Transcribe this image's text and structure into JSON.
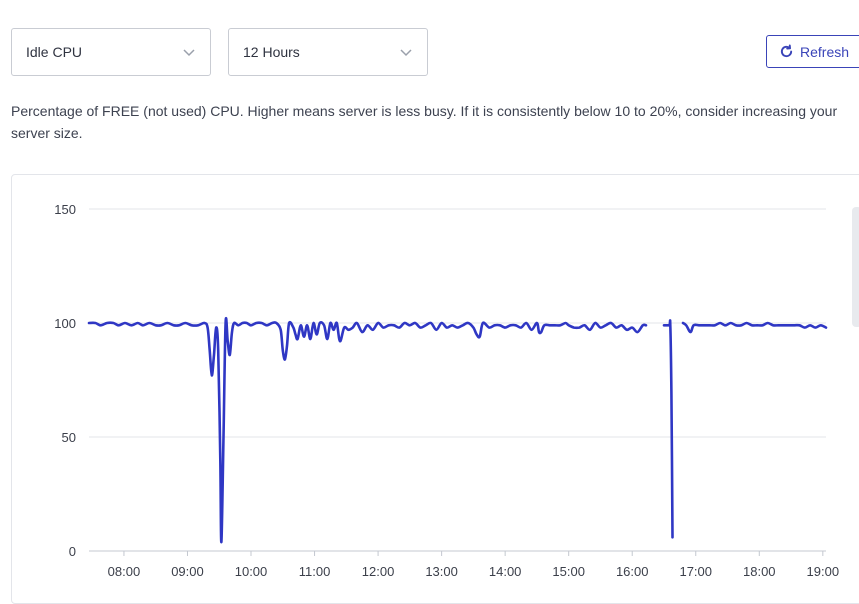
{
  "controls": {
    "metric_select": "Idle CPU",
    "range_select": "12 Hours",
    "refresh_label": "Refresh"
  },
  "description": "Percentage of FREE (not used) CPU. Higher means server is less busy. If it is consistently below 10 to 20%, consider increasing your server size.",
  "colors": {
    "line": "#2f37c4",
    "grid": "#e3e5ea",
    "accent": "#3a44b8"
  },
  "chart_data": {
    "type": "line",
    "title": "",
    "xlabel": "",
    "ylabel": "",
    "ylim": [
      0,
      150
    ],
    "yticks": [
      0,
      50,
      100,
      150
    ],
    "xticks": [
      "08:00",
      "09:00",
      "10:00",
      "11:00",
      "12:00",
      "13:00",
      "14:00",
      "15:00",
      "16:00",
      "17:00",
      "18:00",
      "19:00"
    ],
    "grid": true,
    "series": [
      {
        "segments": [
          [
            [
              "07:27",
              100
            ],
            [
              "07:33",
              100
            ],
            [
              "07:38",
              99
            ],
            [
              "07:44",
              100
            ],
            [
              "07:50",
              100
            ],
            [
              "07:55",
              99
            ],
            [
              "08:01",
              100
            ],
            [
              "08:07",
              99
            ],
            [
              "08:13",
              100
            ],
            [
              "08:18",
              99
            ],
            [
              "08:24",
              100
            ],
            [
              "08:30",
              99
            ],
            [
              "08:35",
              99
            ],
            [
              "08:41",
              100
            ],
            [
              "08:47",
              99
            ],
            [
              "08:52",
              99
            ],
            [
              "08:58",
              100
            ],
            [
              "09:04",
              99
            ],
            [
              "09:10",
              99
            ],
            [
              "09:16",
              100
            ],
            [
              "09:19",
              98
            ],
            [
              "09:21",
              88
            ],
            [
              "09:23",
              77
            ],
            [
              "09:25",
              86
            ],
            [
              "09:27",
              98
            ],
            [
              "09:29",
              88
            ],
            [
              "09:31",
              40
            ],
            [
              "09:32",
              4
            ],
            [
              "09:34",
              50
            ],
            [
              "09:36",
              100
            ],
            [
              "09:38",
              92
            ],
            [
              "09:40",
              86
            ],
            [
              "09:42",
              96
            ],
            [
              "09:44",
              100
            ],
            [
              "09:48",
              99
            ],
            [
              "09:52",
              100
            ],
            [
              "09:56",
              100
            ],
            [
              "10:00",
              99
            ],
            [
              "10:05",
              100
            ],
            [
              "10:10",
              100
            ],
            [
              "10:15",
              99
            ],
            [
              "10:20",
              100
            ],
            [
              "10:24",
              100
            ],
            [
              "10:28",
              97
            ],
            [
              "10:30",
              88
            ],
            [
              "10:32",
              84
            ],
            [
              "10:34",
              90
            ],
            [
              "10:36",
              100
            ],
            [
              "10:40",
              98
            ],
            [
              "10:42",
              95
            ],
            [
              "10:44",
              93
            ],
            [
              "10:47",
              99
            ],
            [
              "10:50",
              94
            ],
            [
              "10:53",
              99
            ],
            [
              "10:56",
              93
            ],
            [
              "10:59",
              100
            ],
            [
              "11:02",
              95
            ],
            [
              "11:05",
              100
            ],
            [
              "11:09",
              99
            ],
            [
              "11:12",
              93
            ],
            [
              "11:15",
              100
            ],
            [
              "11:18",
              97
            ],
            [
              "11:21",
              100
            ],
            [
              "11:24",
              92
            ],
            [
              "11:28",
              98
            ],
            [
              "11:32",
              97
            ],
            [
              "11:36",
              98
            ],
            [
              "11:40",
              100
            ],
            [
              "11:45",
              96
            ],
            [
              "11:50",
              99
            ],
            [
              "11:55",
              97
            ],
            [
              "12:00",
              100
            ],
            [
              "12:05",
              98
            ],
            [
              "12:10",
              99
            ],
            [
              "12:15",
              99
            ],
            [
              "12:20",
              98
            ],
            [
              "12:25",
              100
            ],
            [
              "12:30",
              99
            ],
            [
              "12:35",
              100
            ],
            [
              "12:40",
              98
            ],
            [
              "12:45",
              99
            ],
            [
              "12:50",
              100
            ],
            [
              "12:55",
              97
            ],
            [
              "13:00",
              100
            ],
            [
              "13:05",
              98
            ],
            [
              "13:10",
              99
            ],
            [
              "13:15",
              98
            ],
            [
              "13:20",
              99
            ],
            [
              "13:25",
              100
            ],
            [
              "13:30",
              98
            ],
            [
              "13:33",
              95
            ],
            [
              "13:36",
              94
            ],
            [
              "13:39",
              100
            ],
            [
              "13:45",
              98
            ],
            [
              "13:50",
              99
            ],
            [
              "13:55",
              99
            ],
            [
              "14:00",
              98
            ],
            [
              "14:05",
              99
            ],
            [
              "14:10",
              99
            ],
            [
              "14:15",
              98
            ],
            [
              "14:20",
              100
            ],
            [
              "14:25",
              97
            ],
            [
              "14:30",
              100
            ],
            [
              "14:32",
              96
            ],
            [
              "14:34",
              96
            ],
            [
              "14:37",
              99
            ],
            [
              "14:42",
              99
            ],
            [
              "14:47",
              99
            ],
            [
              "14:52",
              99
            ],
            [
              "14:57",
              100
            ],
            [
              "15:00",
              99
            ],
            [
              "15:05",
              98
            ],
            [
              "15:10",
              98
            ],
            [
              "15:15",
              99
            ],
            [
              "15:20",
              97
            ],
            [
              "15:25",
              100
            ],
            [
              "15:30",
              98
            ],
            [
              "15:35",
              99
            ],
            [
              "15:40",
              100
            ],
            [
              "15:45",
              98
            ],
            [
              "15:50",
              99
            ],
            [
              "15:55",
              97
            ],
            [
              "16:00",
              98
            ],
            [
              "16:05",
              96
            ],
            [
              "16:10",
              99
            ],
            [
              "16:13",
              99
            ]
          ],
          [
            [
              "16:30",
              99
            ],
            [
              "16:35",
              99
            ],
            [
              "16:36",
              99
            ],
            [
              "16:37",
              70
            ],
            [
              "16:38",
              6
            ]
          ],
          [
            [
              "16:48",
              100
            ],
            [
              "16:51",
              99
            ],
            [
              "16:55",
              96
            ],
            [
              "16:58",
              99
            ],
            [
              "17:03",
              99
            ],
            [
              "17:08",
              99
            ],
            [
              "17:13",
              99
            ],
            [
              "17:18",
              99
            ],
            [
              "17:23",
              100
            ],
            [
              "17:28",
              99
            ],
            [
              "17:33",
              100
            ],
            [
              "17:38",
              99
            ],
            [
              "17:43",
              99
            ],
            [
              "17:48",
              100
            ],
            [
              "17:53",
              99
            ],
            [
              "17:58",
              99
            ],
            [
              "18:03",
              99
            ],
            [
              "18:08",
              100
            ],
            [
              "18:13",
              99
            ],
            [
              "18:18",
              99
            ],
            [
              "18:23",
              99
            ],
            [
              "18:28",
              99
            ],
            [
              "18:33",
              99
            ],
            [
              "18:38",
              99
            ],
            [
              "18:43",
              98
            ],
            [
              "18:48",
              99
            ],
            [
              "18:53",
              98
            ],
            [
              "18:58",
              99
            ],
            [
              "19:03",
              98
            ]
          ]
        ]
      }
    ]
  }
}
